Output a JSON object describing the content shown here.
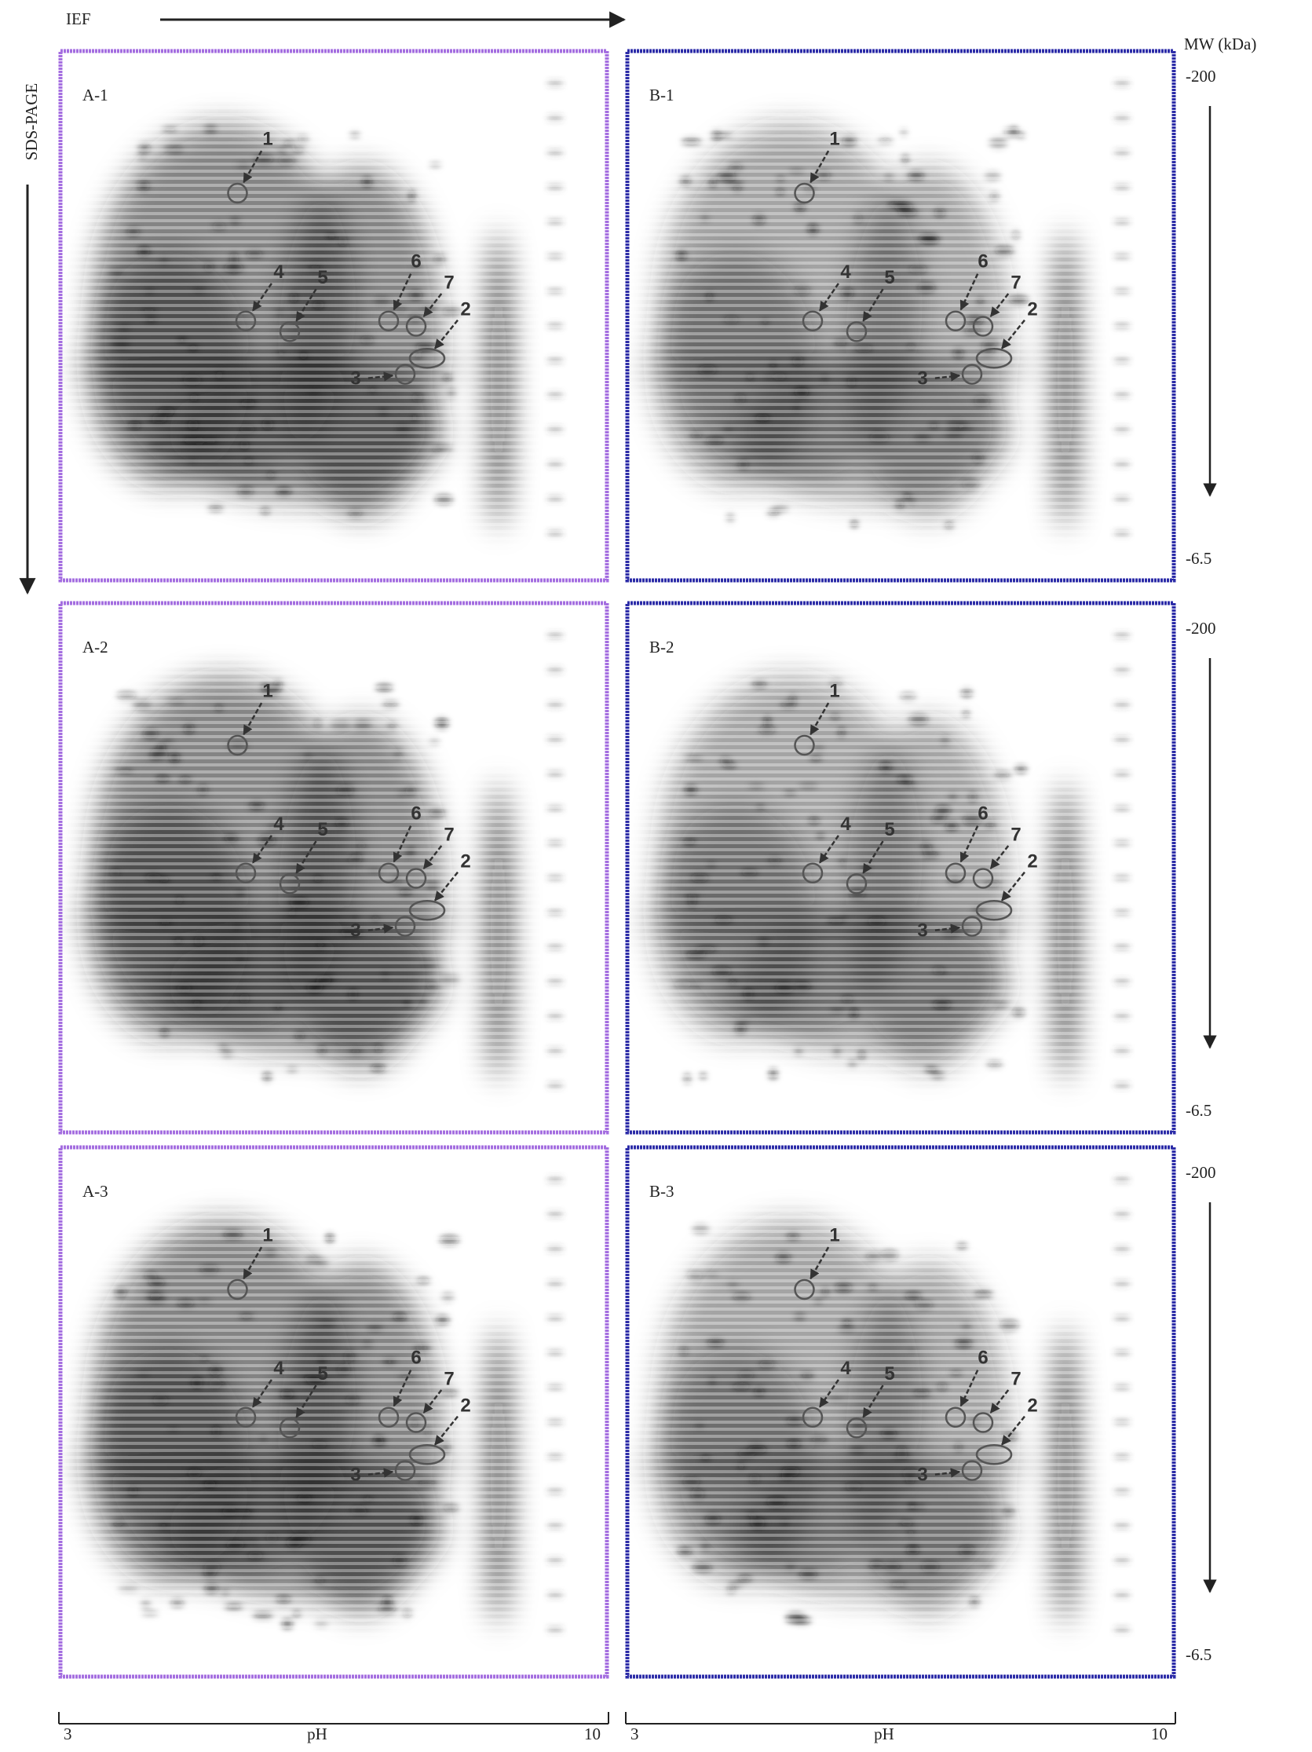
{
  "header": {
    "ief": "IEF",
    "sds_page": "SDS-PAGE",
    "mw": "MW (kDa)"
  },
  "panels": [
    {
      "label": "A-1",
      "spots": [
        "1",
        "2",
        "3",
        "4",
        "5",
        "6",
        "7"
      ]
    },
    {
      "label": "B-1",
      "spots": [
        "1",
        "2",
        "3",
        "4",
        "5",
        "6",
        "7"
      ]
    },
    {
      "label": "A-2",
      "spots": [
        "1",
        "2",
        "3",
        "4",
        "5",
        "6",
        "7"
      ]
    },
    {
      "label": "B-2",
      "spots": [
        "1",
        "2",
        "3",
        "4",
        "5",
        "6",
        "7"
      ]
    },
    {
      "label": "A-3",
      "spots": [
        "1",
        "2",
        "3",
        "4",
        "5",
        "6",
        "7"
      ]
    },
    {
      "label": "B-3",
      "spots": [
        "1",
        "2",
        "3",
        "4",
        "5",
        "6",
        "7"
      ]
    }
  ],
  "mw_rows": [
    {
      "top": "-200",
      "bottom": "-6.5"
    },
    {
      "top": "-200",
      "bottom": "-6.5"
    },
    {
      "top": "-200",
      "bottom": "-6.5"
    }
  ],
  "x_axes": [
    {
      "min": "3",
      "label": "pH",
      "max": "10"
    },
    {
      "min": "3",
      "label": "pH",
      "max": "10"
    }
  ]
}
